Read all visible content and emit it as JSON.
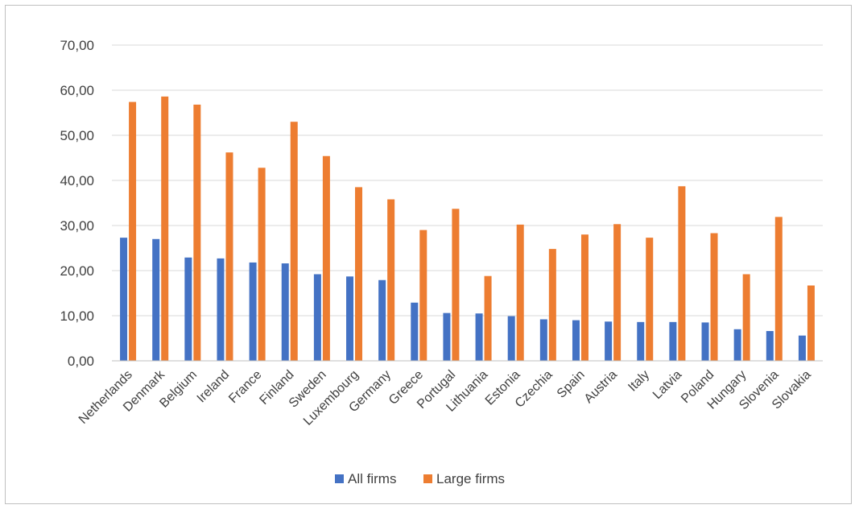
{
  "chart_data": {
    "type": "bar",
    "title": "",
    "xlabel": "",
    "ylabel": "",
    "ylim": [
      0,
      70
    ],
    "yticks": [
      "0,00",
      "10,00",
      "20,00",
      "30,00",
      "40,00",
      "50,00",
      "60,00",
      "70,00"
    ],
    "grid": true,
    "legend_position": "bottom",
    "categories": [
      "Netherlands",
      "Denmark",
      "Belgium",
      "Ireland",
      "France",
      "Finland",
      "Sweden",
      "Luxembourg",
      "Germany",
      "Greece",
      "Portugal",
      "Lithuania",
      "Estonia",
      "Czechia",
      "Spain",
      "Austria",
      "Italy",
      "Latvia",
      "Poland",
      "Hungary",
      "Slovenia",
      "Slovakia"
    ],
    "series": [
      {
        "name": "All firms",
        "color": "#4472c4",
        "values": [
          27.3,
          27.0,
          22.9,
          22.7,
          21.8,
          21.6,
          19.2,
          18.7,
          17.9,
          12.9,
          10.6,
          10.5,
          9.9,
          9.2,
          9.0,
          8.7,
          8.6,
          8.6,
          8.5,
          7.0,
          6.6,
          5.6
        ]
      },
      {
        "name": "Large firms",
        "color": "#ed7d31",
        "values": [
          57.4,
          58.6,
          56.8,
          46.2,
          42.8,
          53.0,
          45.4,
          38.5,
          35.8,
          29.0,
          33.7,
          18.8,
          30.2,
          24.8,
          28.0,
          30.3,
          27.3,
          38.7,
          28.3,
          19.2,
          31.9,
          16.7
        ]
      }
    ]
  }
}
